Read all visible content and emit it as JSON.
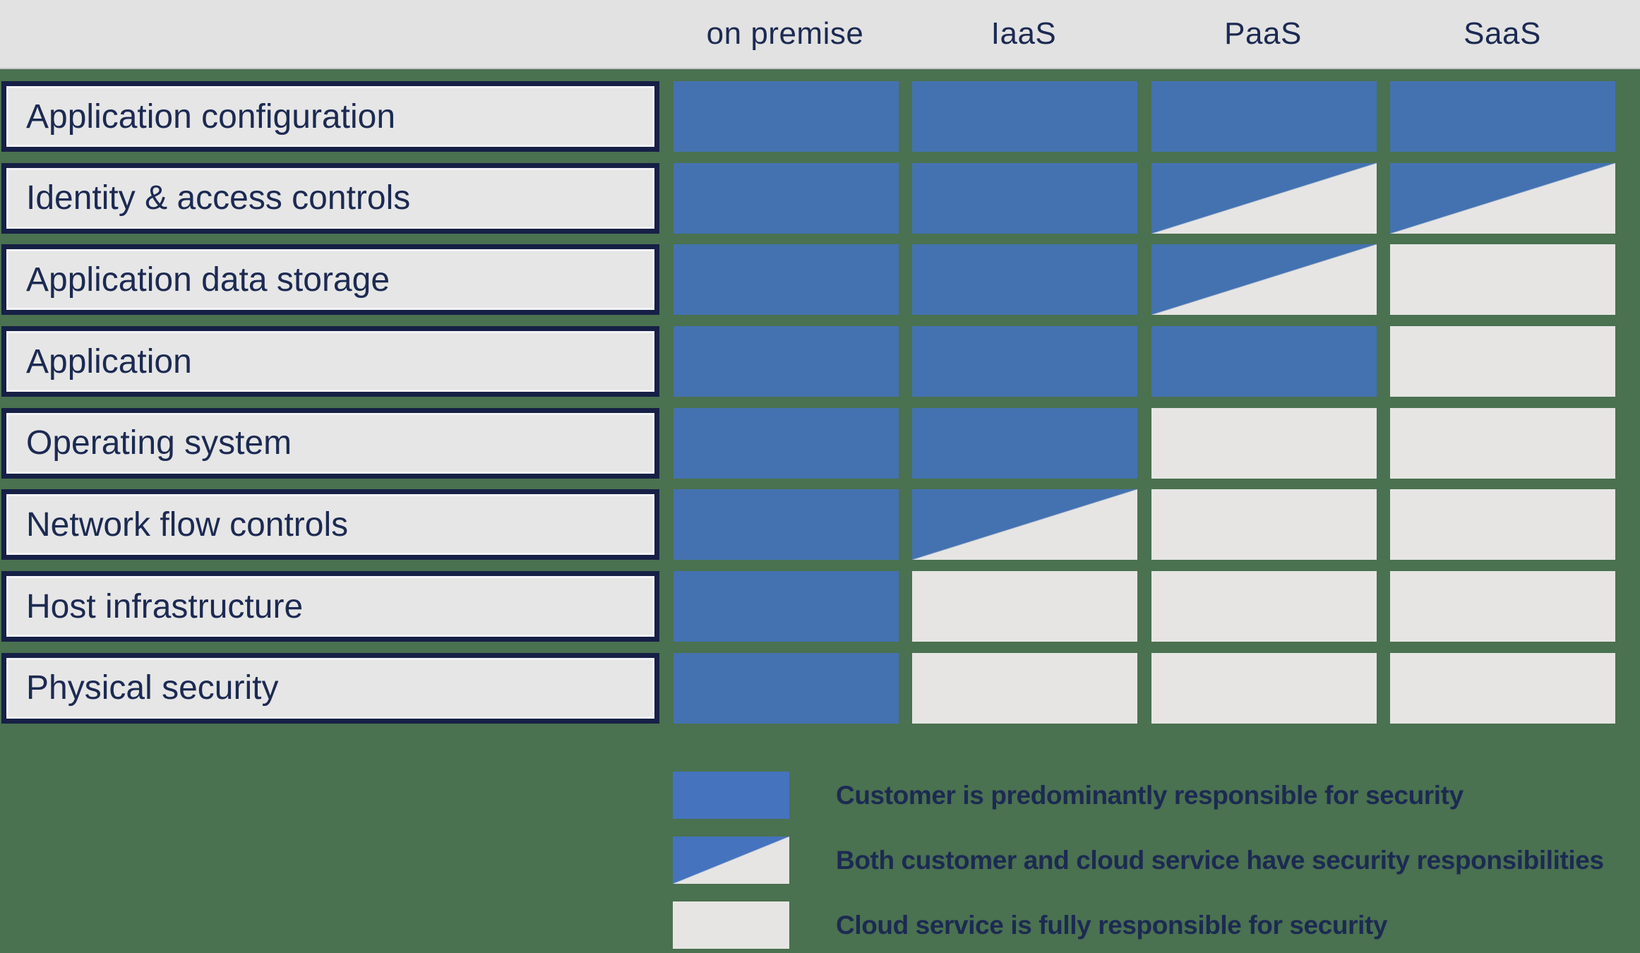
{
  "header": {
    "columns": [
      "on premise",
      "IaaS",
      "PaaS",
      "SaaS"
    ]
  },
  "rows": [
    {
      "label": "Application configuration",
      "cells": [
        "customer",
        "customer",
        "customer",
        "customer"
      ]
    },
    {
      "label": "Identity & access controls",
      "cells": [
        "customer",
        "customer",
        "shared",
        "shared"
      ]
    },
    {
      "label": "Application data storage",
      "cells": [
        "customer",
        "customer",
        "shared",
        "cloud"
      ]
    },
    {
      "label": "Application",
      "cells": [
        "customer",
        "customer",
        "customer",
        "cloud"
      ]
    },
    {
      "label": "Operating system",
      "cells": [
        "customer",
        "customer",
        "cloud",
        "cloud"
      ]
    },
    {
      "label": "Network flow controls",
      "cells": [
        "customer",
        "shared",
        "cloud",
        "cloud"
      ]
    },
    {
      "label": "Host infrastructure",
      "cells": [
        "customer",
        "cloud",
        "cloud",
        "cloud"
      ]
    },
    {
      "label": "Physical security",
      "cells": [
        "customer",
        "cloud",
        "cloud",
        "cloud"
      ]
    }
  ],
  "legend": [
    {
      "type": "customer",
      "label": "Customer is predominantly responsible for security"
    },
    {
      "type": "shared",
      "label": "Both customer and cloud service have security responsibilities"
    },
    {
      "type": "cloud",
      "label": "Cloud service is fully responsible for security"
    }
  ],
  "colors": {
    "customer_blue": "#4472B0",
    "cloud_grey": "#E6E5E3",
    "background_green": "#4A7150",
    "navy_text": "#1C2A52",
    "header_grey": "#E2E2E2"
  }
}
